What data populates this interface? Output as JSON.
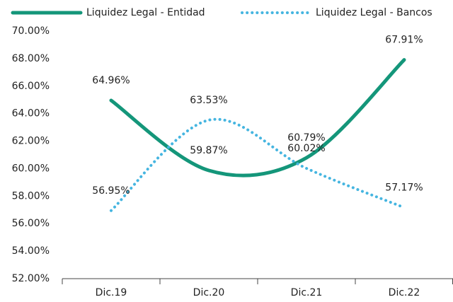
{
  "chart_data": {
    "type": "line",
    "categories": [
      "Dic.19",
      "Dic.20",
      "Dic.21",
      "Dic.22"
    ],
    "series": [
      {
        "name": "Liquidez Legal - Entidad",
        "color": "#14967a",
        "style": "solid",
        "values": [
          64.96,
          59.87,
          60.79,
          67.91
        ],
        "value_labels": [
          "64.96%",
          "59.87%",
          "60.79%",
          "67.91%"
        ]
      },
      {
        "name": "Liquidez Legal - Bancos",
        "color": "#45b5e0",
        "style": "dotted",
        "values": [
          56.95,
          63.53,
          60.02,
          57.17
        ],
        "value_labels": [
          "56.95%",
          "63.53%",
          "60.02%",
          "57.17%"
        ]
      }
    ],
    "ylim": [
      52,
      70
    ],
    "yticks": [
      {
        "value": 52,
        "label": "52.00%"
      },
      {
        "value": 54,
        "label": "54.00%"
      },
      {
        "value": 56,
        "label": "56.00%"
      },
      {
        "value": 58,
        "label": "58.00%"
      },
      {
        "value": 60,
        "label": "60.00%"
      },
      {
        "value": 62,
        "label": "62.00%"
      },
      {
        "value": 64,
        "label": "64.00%"
      },
      {
        "value": 66,
        "label": "66.00%"
      },
      {
        "value": 68,
        "label": "68.00%"
      },
      {
        "value": 70,
        "label": "70.00%"
      }
    ],
    "grid": false,
    "legend": "top"
  }
}
